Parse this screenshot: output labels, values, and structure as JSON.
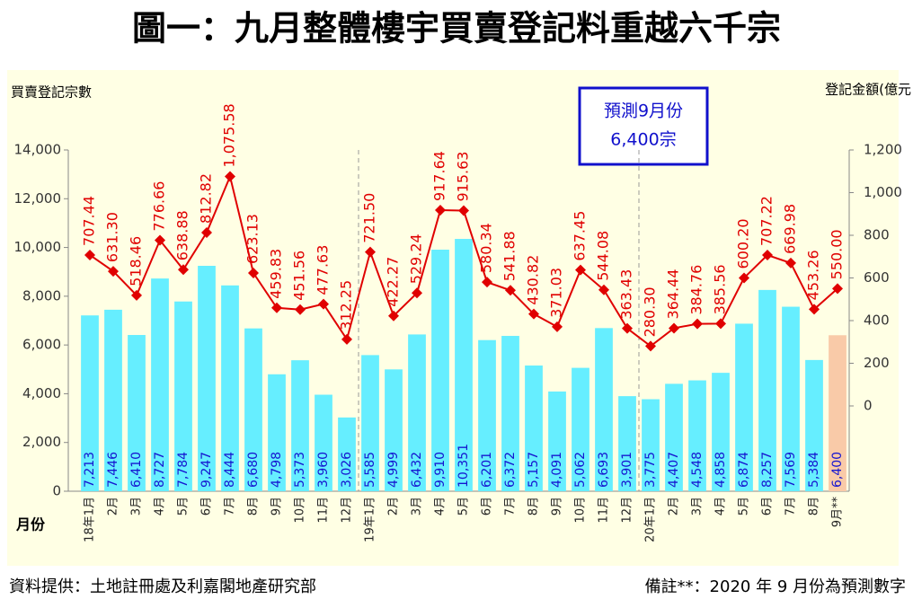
{
  "chart_data": {
    "type": "bar_line",
    "title": "圖一：九月整體樓宇買賣登記料重越六千宗",
    "y_label": "買賣登記宗數",
    "y2_label": "登記金額(億元",
    "x_label": "月份",
    "annotation": [
      "預測9月份",
      "6,400宗"
    ],
    "source": "資料提供：土地註冊處及利嘉閣地產研究部",
    "note": "備註**：2020 年 9 月份為預測數字",
    "categories": [
      "18年1月",
      "2月",
      "3月",
      "4月",
      "5月",
      "6月",
      "7月",
      "8月",
      "9月",
      "10月",
      "11月",
      "12月",
      "19年1月",
      "2月",
      "3月",
      "4月",
      "5月",
      "6月",
      "7月",
      "8月",
      "9月",
      "10月",
      "11月",
      "12月",
      "20年1月",
      "2月",
      "3月",
      "4月",
      "5月",
      "6月",
      "7月",
      "8月",
      "9月**"
    ],
    "ylim": [
      0,
      14000
    ],
    "yticks": [
      0,
      {
        "value": 2000,
        "label": "2,000"
      },
      {
        "value": 4000,
        "label": "4,000"
      },
      {
        "value": 6000,
        "label": "6,000"
      },
      {
        "value": 8000,
        "label": "8,000"
      },
      {
        "value": 10000,
        "label": "10,000"
      },
      {
        "value": 12000,
        "label": "12,000"
      },
      {
        "value": 14000,
        "label": "14,000"
      }
    ],
    "y2lim": [
      -400,
      1200
    ],
    "y2ticks": [
      0,
      200,
      400,
      600,
      800,
      {
        "value": 1000,
        "label": "1,000"
      },
      {
        "value": 1200,
        "label": "1,200"
      }
    ],
    "series": [
      {
        "type": "bar",
        "color": "#66eeff",
        "colors": [
          "#66eeff",
          "#66eeff",
          "#66eeff",
          "#66eeff",
          "#66eeff",
          "#66eeff",
          "#66eeff",
          "#66eeff",
          "#66eeff",
          "#66eeff",
          "#66eeff",
          "#66eeff",
          "#66eeff",
          "#66eeff",
          "#66eeff",
          "#66eeff",
          "#66eeff",
          "#66eeff",
          "#66eeff",
          "#66eeff",
          "#66eeff",
          "#66eeff",
          "#66eeff",
          "#66eeff",
          "#66eeff",
          "#66eeff",
          "#66eeff",
          "#66eeff",
          "#66eeff",
          "#66eeff",
          "#66eeff",
          "#66eeff",
          "#f9caa8"
        ],
        "values": [
          7213,
          7446,
          6410,
          8727,
          7784,
          9247,
          8444,
          6680,
          4798,
          5373,
          3960,
          3026,
          5585,
          4999,
          6432,
          9910,
          10351,
          6201,
          6372,
          5157,
          4091,
          5062,
          6693,
          3901,
          3775,
          4407,
          4548,
          4858,
          6874,
          8257,
          7569,
          5384,
          6400
        ],
        "value_labels": [
          "7,213",
          "7,446",
          "6,410",
          "8,727",
          "7,784",
          "9,247",
          "8,444",
          "6,680",
          "4,798",
          "5,373",
          "3,960",
          "3,026",
          "5,585",
          "4,999",
          "6,432",
          "9,910",
          "10,351",
          "6,201",
          "6,372",
          "5,157",
          "4,091",
          "5,062",
          "6,693",
          "3,901",
          "3,775",
          "4,407",
          "4,548",
          "4,858",
          "6,874",
          "8,257",
          "7,569",
          "5,384",
          "6,400"
        ]
      },
      {
        "type": "line",
        "axis": "y2",
        "color": "#e00000",
        "values": [
          707.44,
          631.3,
          518.46,
          776.66,
          638.88,
          812.82,
          1075.58,
          623.13,
          459.83,
          451.56,
          477.63,
          312.25,
          721.5,
          422.27,
          529.24,
          917.64,
          915.63,
          580.34,
          541.88,
          430.82,
          371.03,
          637.45,
          544.08,
          363.43,
          280.3,
          364.44,
          384.76,
          385.56,
          600.2,
          707.22,
          669.98,
          453.26,
          550
        ],
        "value_labels": [
          "707.44",
          "631.30",
          "518.46",
          "776.66",
          "638.88",
          "812.82",
          "1,075.58",
          "623.13",
          "459.83",
          "451.56",
          "477.63",
          "312.25",
          "721.50",
          "422.27",
          "529.24",
          "917.64",
          "915.63",
          "580.34",
          "541.88",
          "430.82",
          "371.03",
          "637.45",
          "544.08",
          "363.43",
          "280.30",
          "364.44",
          "384.76",
          "385.56",
          "600.20",
          "707.22",
          "669.98",
          "453.26",
          "550.00"
        ]
      }
    ]
  }
}
